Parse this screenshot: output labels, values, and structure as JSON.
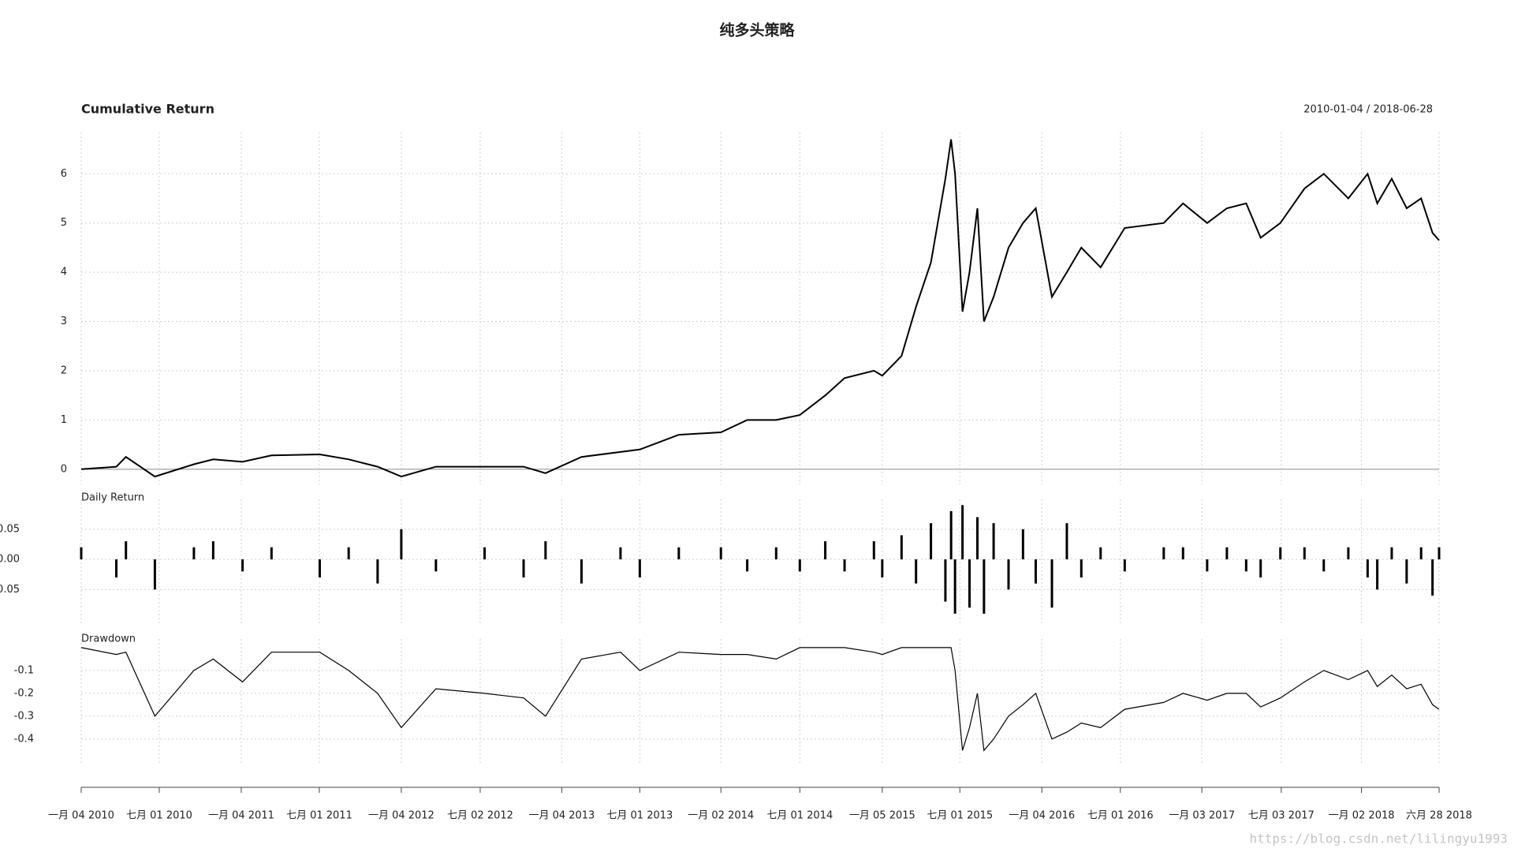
{
  "title": "纯多头策略",
  "watermark": "https://blog.csdn.net/lilingyu1993",
  "chart_data": [
    {
      "type": "line",
      "title": "Cumulative Return",
      "subtitle": "2010-01-04 / 2018-06-28",
      "color": "#000000",
      "grid": true,
      "x": [
        "2010-01-04",
        "2010-03-25",
        "2010-04-16",
        "2010-06-21",
        "2010-09-18",
        "2010-11-01",
        "2011-01-07",
        "2011-03-14",
        "2011-07-02",
        "2011-09-06",
        "2011-11-11",
        "2012-01-04",
        "2012-03-23",
        "2012-07-12",
        "2012-10-09",
        "2012-11-28",
        "2013-02-18",
        "2013-05-18",
        "2013-07-01",
        "2013-09-28",
        "2014-01-02",
        "2014-03-03",
        "2014-05-08",
        "2014-07-01",
        "2014-08-28",
        "2014-10-11",
        "2014-12-17",
        "2015-01-05",
        "2015-02-18",
        "2015-03-23",
        "2015-04-26",
        "2015-05-29",
        "2015-06-11",
        "2015-06-20",
        "2015-07-07",
        "2015-07-23",
        "2015-08-10",
        "2015-08-25",
        "2015-09-16",
        "2015-10-20",
        "2015-11-22",
        "2015-12-21",
        "2016-01-27",
        "2016-03-01",
        "2016-04-03",
        "2016-05-17",
        "2016-07-11",
        "2016-10-08",
        "2016-11-21",
        "2017-01-15",
        "2017-03-01",
        "2017-04-14",
        "2017-05-17",
        "2017-07-01",
        "2017-08-25",
        "2017-10-08",
        "2017-12-03",
        "2018-01-16",
        "2018-02-07",
        "2018-03-12",
        "2018-04-15",
        "2018-05-18",
        "2018-06-13",
        "2018-06-28"
      ],
      "values": [
        0,
        0.05,
        0.25,
        -0.15,
        0.1,
        0.2,
        0.15,
        0.28,
        0.3,
        0.2,
        0.05,
        -0.15,
        0.05,
        0.05,
        0.05,
        -0.08,
        0.25,
        0.35,
        0.4,
        0.7,
        0.75,
        1.0,
        1.0,
        1.1,
        1.5,
        1.85,
        2.0,
        1.9,
        2.3,
        3.3,
        4.2,
        5.9,
        6.7,
        6.0,
        3.2,
        4.0,
        5.3,
        3.0,
        3.5,
        4.5,
        5.0,
        5.3,
        3.5,
        4.0,
        4.5,
        4.1,
        4.9,
        5.0,
        5.4,
        5.0,
        5.3,
        5.4,
        4.7,
        5.0,
        5.7,
        6.0,
        5.5,
        6.0,
        5.4,
        5.9,
        5.3,
        5.5,
        4.8,
        4.65
      ],
      "ylim": [
        -0.18,
        6.71
      ],
      "yticks": [
        0,
        1,
        2,
        3,
        4,
        5,
        6
      ]
    },
    {
      "type": "bar",
      "title": "Daily Return",
      "color": "#000000",
      "grid": true,
      "x": [
        "2010-01-04",
        "2010-03-25",
        "2010-04-16",
        "2010-06-21",
        "2010-09-18",
        "2010-11-01",
        "2011-01-07",
        "2011-03-14",
        "2011-07-02",
        "2011-09-06",
        "2011-11-11",
        "2012-01-04",
        "2012-03-23",
        "2012-07-12",
        "2012-10-09",
        "2012-11-28",
        "2013-02-18",
        "2013-05-18",
        "2013-07-01",
        "2013-09-28",
        "2014-01-02",
        "2014-03-03",
        "2014-05-08",
        "2014-07-01",
        "2014-08-28",
        "2014-10-11",
        "2014-12-17",
        "2015-01-05",
        "2015-02-18",
        "2015-03-23",
        "2015-04-26",
        "2015-05-29",
        "2015-06-11",
        "2015-06-20",
        "2015-07-07",
        "2015-07-23",
        "2015-08-10",
        "2015-08-25",
        "2015-09-16",
        "2015-10-20",
        "2015-11-22",
        "2015-12-21",
        "2016-01-27",
        "2016-03-01",
        "2016-04-03",
        "2016-05-17",
        "2016-07-11",
        "2016-10-08",
        "2016-11-21",
        "2017-01-15",
        "2017-03-01",
        "2017-04-14",
        "2017-05-17",
        "2017-07-01",
        "2017-08-25",
        "2017-10-08",
        "2017-12-03",
        "2018-01-16",
        "2018-02-07",
        "2018-03-12",
        "2018-04-15",
        "2018-05-18",
        "2018-06-13",
        "2018-06-28"
      ],
      "values": [
        0.02,
        -0.03,
        0.03,
        -0.05,
        0.02,
        0.03,
        -0.02,
        0.02,
        -0.03,
        0.02,
        -0.04,
        0.05,
        -0.02,
        0.02,
        -0.03,
        0.03,
        -0.04,
        0.02,
        -0.03,
        0.02,
        0.02,
        -0.02,
        0.02,
        -0.02,
        0.03,
        -0.02,
        0.03,
        -0.03,
        0.04,
        -0.04,
        0.06,
        -0.07,
        0.08,
        -0.09,
        0.09,
        -0.08,
        0.07,
        -0.09,
        0.06,
        -0.05,
        0.05,
        -0.04,
        -0.08,
        0.06,
        -0.03,
        0.02,
        -0.02,
        0.02,
        0.02,
        -0.02,
        0.02,
        -0.02,
        -0.03,
        0.02,
        0.02,
        -0.02,
        0.02,
        -0.03,
        -0.05,
        0.02,
        -0.04,
        0.02,
        -0.06,
        0.02
      ],
      "ylim": [
        -0.098,
        0.089
      ],
      "yticks": [
        {
          "value": 0.05,
          "label": "0.05"
        },
        {
          "value": 0,
          "label": "0.00"
        },
        {
          "value": -0.05,
          "label": "-0.05"
        }
      ]
    },
    {
      "type": "line",
      "title": "Drawdown",
      "color": "#000000",
      "grid": true,
      "x": [
        "2010-01-04",
        "2010-03-25",
        "2010-04-16",
        "2010-06-21",
        "2010-09-18",
        "2010-11-01",
        "2011-01-07",
        "2011-03-14",
        "2011-07-02",
        "2011-09-06",
        "2011-11-11",
        "2012-01-04",
        "2012-03-23",
        "2012-07-12",
        "2012-10-09",
        "2012-11-28",
        "2013-02-18",
        "2013-05-18",
        "2013-07-01",
        "2013-09-28",
        "2014-01-02",
        "2014-03-03",
        "2014-05-08",
        "2014-07-01",
        "2014-08-28",
        "2014-10-11",
        "2014-12-17",
        "2015-01-05",
        "2015-02-18",
        "2015-03-23",
        "2015-04-26",
        "2015-05-29",
        "2015-06-11",
        "2015-06-20",
        "2015-07-07",
        "2015-07-23",
        "2015-08-10",
        "2015-08-25",
        "2015-09-16",
        "2015-10-20",
        "2015-11-22",
        "2015-12-21",
        "2016-01-27",
        "2016-03-01",
        "2016-04-03",
        "2016-05-17",
        "2016-07-11",
        "2016-10-08",
        "2016-11-21",
        "2017-01-15",
        "2017-03-01",
        "2017-04-14",
        "2017-05-17",
        "2017-07-01",
        "2017-08-25",
        "2017-10-08",
        "2017-12-03",
        "2018-01-16",
        "2018-02-07",
        "2018-03-12",
        "2018-04-15",
        "2018-05-18",
        "2018-06-13",
        "2018-06-28"
      ],
      "values": [
        0,
        -0.03,
        -0.02,
        -0.3,
        -0.1,
        -0.05,
        -0.15,
        -0.02,
        -0.02,
        -0.1,
        -0.2,
        -0.35,
        -0.18,
        -0.2,
        -0.22,
        -0.3,
        -0.05,
        -0.02,
        -0.1,
        -0.02,
        -0.03,
        -0.03,
        -0.05,
        0,
        0,
        0,
        -0.02,
        -0.03,
        0,
        0,
        0,
        0,
        0,
        -0.1,
        -0.45,
        -0.35,
        -0.2,
        -0.45,
        -0.4,
        -0.3,
        -0.25,
        -0.2,
        -0.4,
        -0.37,
        -0.33,
        -0.35,
        -0.27,
        -0.24,
        -0.2,
        -0.23,
        -0.2,
        -0.2,
        -0.26,
        -0.22,
        -0.15,
        -0.1,
        -0.14,
        -0.1,
        -0.17,
        -0.12,
        -0.18,
        -0.16,
        -0.25,
        -0.27
      ],
      "ylim": [
        -0.48,
        0.01
      ],
      "yticks": [
        -0.1,
        -0.2,
        -0.3,
        -0.4
      ],
      "xlim": [
        "2010-01-04",
        "2018-06-28"
      ],
      "xticks": [
        {
          "value": "2010-01-04",
          "label": "一月 04 2010"
        },
        {
          "value": "2010-07-01",
          "label": "七月 01 2010"
        },
        {
          "value": "2011-01-04",
          "label": "一月 04 2011"
        },
        {
          "value": "2011-07-01",
          "label": "七月 01 2011"
        },
        {
          "value": "2012-01-04",
          "label": "一月 04 2012"
        },
        {
          "value": "2012-07-02",
          "label": "七月 02 2012"
        },
        {
          "value": "2013-01-04",
          "label": "一月 04 2013"
        },
        {
          "value": "2013-07-01",
          "label": "七月 01 2013"
        },
        {
          "value": "2014-01-02",
          "label": "一月 02 2014"
        },
        {
          "value": "2014-07-01",
          "label": "七月 01 2014"
        },
        {
          "value": "2015-01-05",
          "label": "一月 05 2015"
        },
        {
          "value": "2015-07-01",
          "label": "七月 01 2015"
        },
        {
          "value": "2016-01-04",
          "label": "一月 04 2016"
        },
        {
          "value": "2016-07-01",
          "label": "七月 01 2016"
        },
        {
          "value": "2017-01-03",
          "label": "一月 03 2017"
        },
        {
          "value": "2017-07-03",
          "label": "七月 03 2017"
        },
        {
          "value": "2018-01-02",
          "label": "一月 02 2018"
        },
        {
          "value": "2018-06-28",
          "label": "六月 28 2018"
        }
      ]
    }
  ]
}
